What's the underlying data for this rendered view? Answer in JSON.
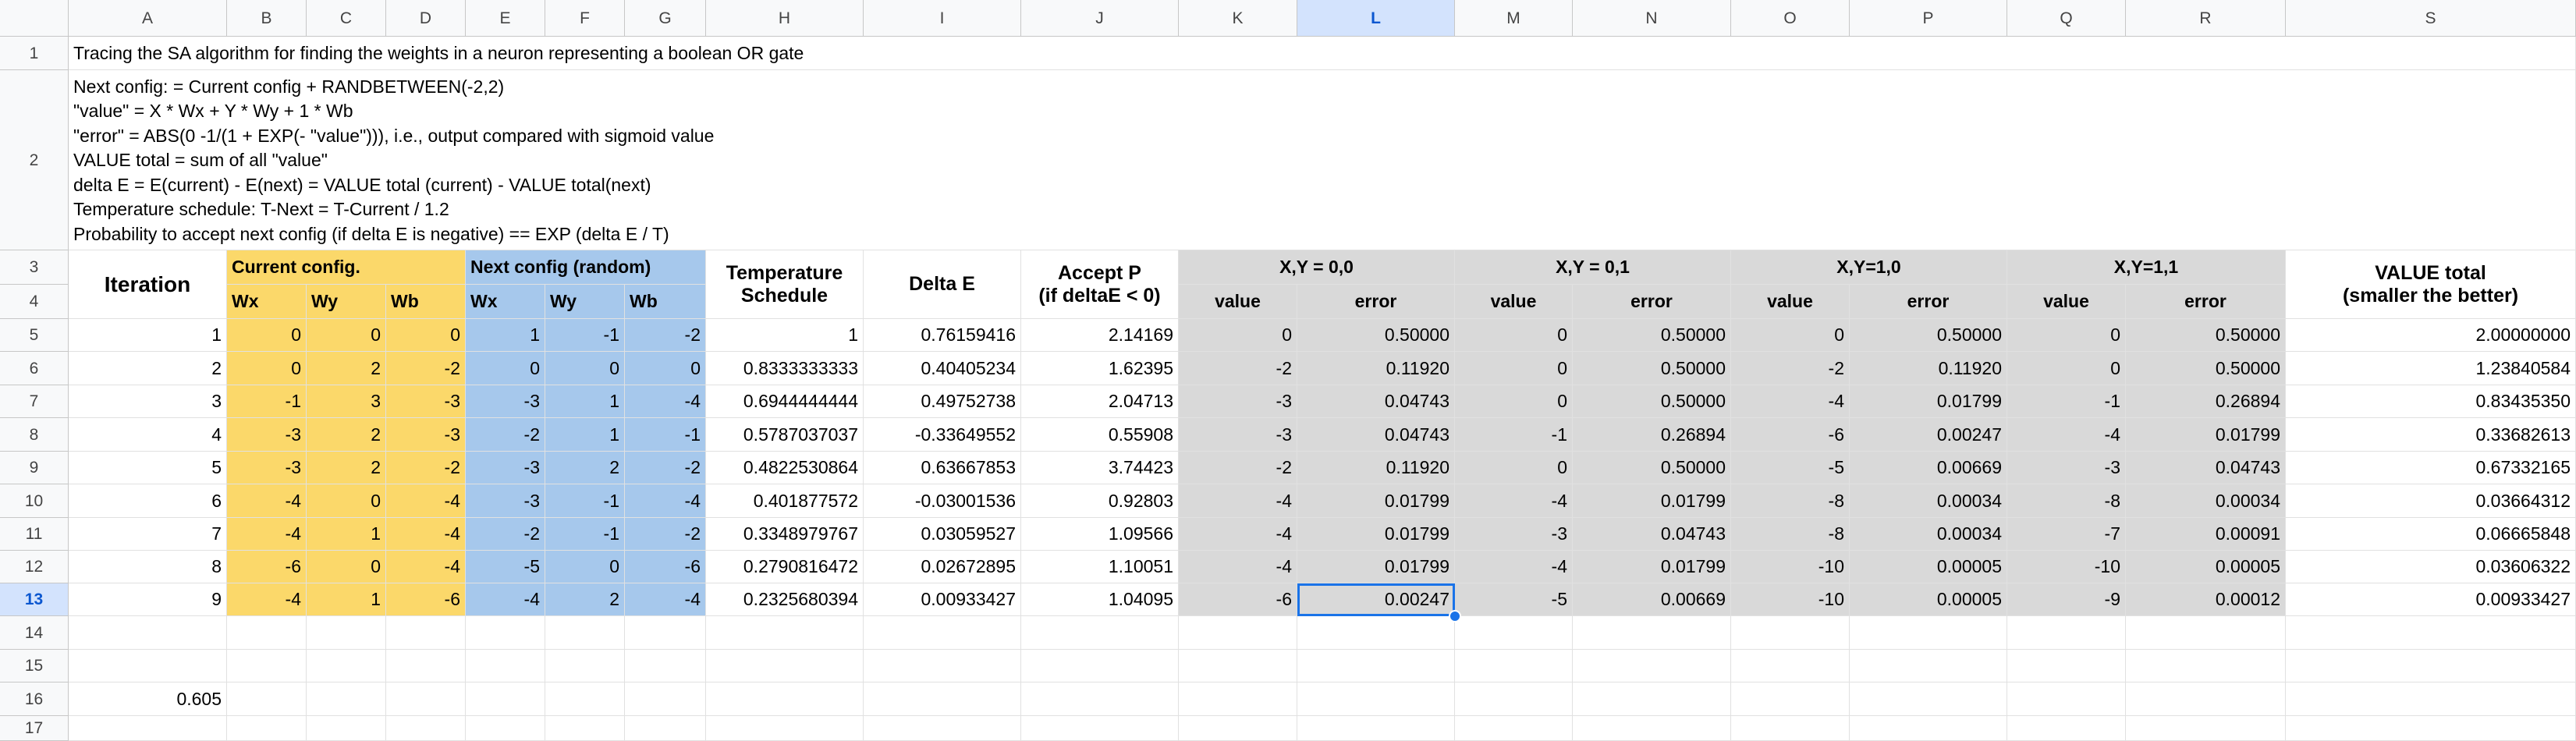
{
  "columns": [
    "A",
    "B",
    "C",
    "D",
    "E",
    "F",
    "G",
    "H",
    "I",
    "J",
    "K",
    "L",
    "M",
    "N",
    "O",
    "P",
    "Q",
    "R",
    "S"
  ],
  "selected_column": "L",
  "selected_row": 13,
  "title": "Tracing the SA algorithm for finding the weights in a neuron representing a boolean OR gate",
  "notes": [
    "Next config: = Current config + RANDBETWEEN(-2,2)",
    "\"value\" = X * Wx + Y * Wy + 1 * Wb",
    "\"error\" = ABS(0 -1/(1 + EXP(- \"value\"))), i.e., output compared with sigmoid value",
    "VALUE total = sum of all \"value\"",
    "delta E = E(current) - E(next) = VALUE total (current) - VALUE total(next)",
    "Temperature schedule: T-Next = T-Current / 1.2",
    "Probability to accept next config (if delta E is negative) == EXP (delta E / T)"
  ],
  "headers": {
    "iteration": "Iteration",
    "current_config": "Current config.",
    "next_config": "Next config (random)",
    "temperature_l1": "Temperature",
    "temperature_l2": "Schedule",
    "delta_e": "Delta E",
    "accept_l1": "Accept P",
    "accept_l2": "(if deltaE < 0)",
    "xy00": "X,Y = 0,0",
    "xy01": "X,Y = 0,1",
    "xy10": "X,Y=1,0",
    "xy11": "X,Y=1,1",
    "value_total_l1": "VALUE total",
    "value_total_l2": "(smaller the better)",
    "wx": "Wx",
    "wy": "Wy",
    "wb": "Wb",
    "value": "value",
    "error": "error"
  },
  "rows": [
    [
      "1",
      "0",
      "0",
      "0",
      "1",
      "-1",
      "-2",
      "1",
      "0.76159416",
      "2.14169",
      "0",
      "0.50000",
      "0",
      "0.50000",
      "0",
      "0.50000",
      "0",
      "0.50000",
      "2.00000000"
    ],
    [
      "2",
      "0",
      "2",
      "-2",
      "0",
      "0",
      "0",
      "0.8333333333",
      "0.40405234",
      "1.62395",
      "-2",
      "0.11920",
      "0",
      "0.50000",
      "-2",
      "0.11920",
      "0",
      "0.50000",
      "1.23840584"
    ],
    [
      "3",
      "-1",
      "3",
      "-3",
      "-3",
      "1",
      "-4",
      "0.6944444444",
      "0.49752738",
      "2.04713",
      "-3",
      "0.04743",
      "0",
      "0.50000",
      "-4",
      "0.01799",
      "-1",
      "0.26894",
      "0.83435350"
    ],
    [
      "4",
      "-3",
      "2",
      "-3",
      "-2",
      "1",
      "-1",
      "0.5787037037",
      "-0.33649552",
      "0.55908",
      "-3",
      "0.04743",
      "-1",
      "0.26894",
      "-6",
      "0.00247",
      "-4",
      "0.01799",
      "0.33682613"
    ],
    [
      "5",
      "-3",
      "2",
      "-2",
      "-3",
      "2",
      "-2",
      "0.4822530864",
      "0.63667853",
      "3.74423",
      "-2",
      "0.11920",
      "0",
      "0.50000",
      "-5",
      "0.00669",
      "-3",
      "0.04743",
      "0.67332165"
    ],
    [
      "6",
      "-4",
      "0",
      "-4",
      "-3",
      "-1",
      "-4",
      "0.401877572",
      "-0.03001536",
      "0.92803",
      "-4",
      "0.01799",
      "-4",
      "0.01799",
      "-8",
      "0.00034",
      "-8",
      "0.00034",
      "0.03664312"
    ],
    [
      "7",
      "-4",
      "1",
      "-4",
      "-2",
      "-1",
      "-2",
      "0.3348979767",
      "0.03059527",
      "1.09566",
      "-4",
      "0.01799",
      "-3",
      "0.04743",
      "-8",
      "0.00034",
      "-7",
      "0.00091",
      "0.06665848"
    ],
    [
      "8",
      "-6",
      "0",
      "-4",
      "-5",
      "0",
      "-6",
      "0.2790816472",
      "0.02672895",
      "1.10051",
      "-4",
      "0.01799",
      "-4",
      "0.01799",
      "-10",
      "0.00005",
      "-10",
      "0.00005",
      "0.03606322"
    ],
    [
      "9",
      "-4",
      "1",
      "-6",
      "-4",
      "2",
      "-4",
      "0.2325680394",
      "0.00933427",
      "1.04095",
      "-6",
      "0.00247",
      "-5",
      "0.00669",
      "-10",
      "0.00005",
      "-9",
      "0.00012",
      "0.00933427"
    ]
  ],
  "a16": "0.605",
  "row_numbers": [
    "1",
    "2",
    "3",
    "4",
    "5",
    "6",
    "7",
    "8",
    "9",
    "10",
    "11",
    "12",
    "13",
    "14",
    "15",
    "16",
    "17"
  ]
}
